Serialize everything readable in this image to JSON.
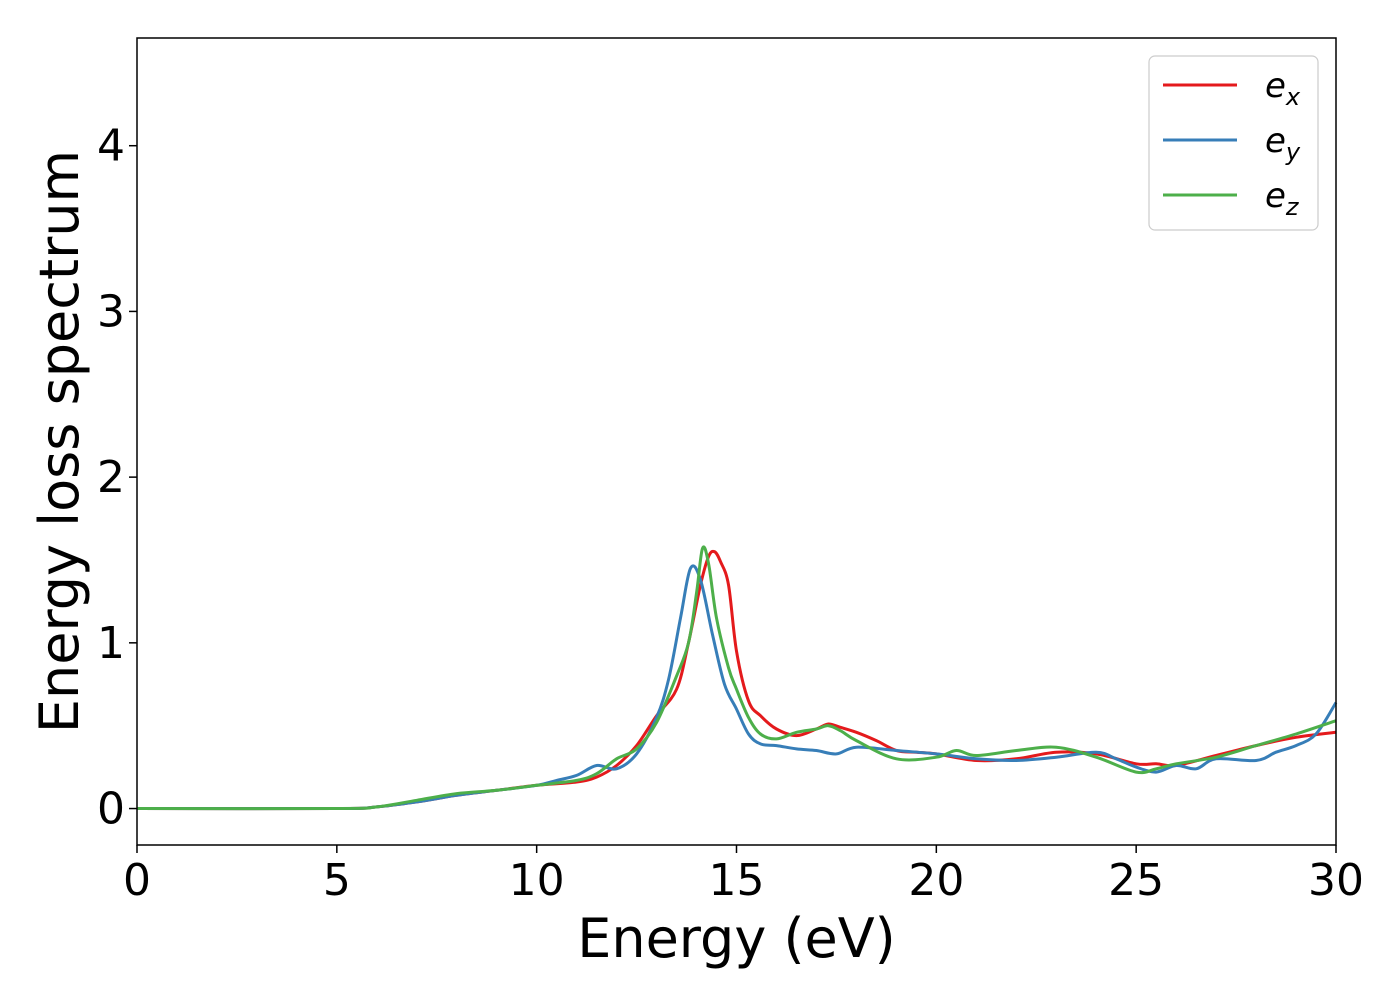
{
  "chart_data": {
    "type": "line",
    "title": "",
    "xlabel": "Energy (eV)",
    "ylabel": "Energy loss spectrum",
    "xlim": [
      0,
      30
    ],
    "ylim": [
      -0.22,
      4.65
    ],
    "xticks": [
      0,
      5,
      10,
      15,
      20,
      25,
      30
    ],
    "yticks": [
      0,
      1,
      2,
      3,
      4
    ],
    "grid": false,
    "legend_position": "top-right",
    "series": [
      {
        "name": "ex",
        "name_base": "e",
        "name_sub": "x",
        "color": "#e41a1c",
        "x": [
          0,
          5,
          6,
          7,
          8,
          9,
          10,
          11,
          11.5,
          12,
          12.5,
          13,
          13.5,
          13.8,
          14.1,
          14.3,
          14.45,
          14.6,
          14.8,
          15,
          15.3,
          15.6,
          16,
          16.5,
          17,
          17.3,
          17.6,
          18,
          18.5,
          19,
          19.5,
          20,
          21,
          22,
          23,
          24,
          25,
          25.5,
          26,
          27,
          28,
          29,
          30
        ],
        "y": [
          0,
          0,
          0.01,
          0.04,
          0.08,
          0.11,
          0.14,
          0.16,
          0.19,
          0.26,
          0.38,
          0.56,
          0.72,
          1.0,
          1.35,
          1.52,
          1.55,
          1.49,
          1.35,
          0.95,
          0.65,
          0.56,
          0.48,
          0.44,
          0.48,
          0.51,
          0.49,
          0.46,
          0.41,
          0.35,
          0.34,
          0.33,
          0.29,
          0.3,
          0.34,
          0.33,
          0.27,
          0.27,
          0.26,
          0.32,
          0.38,
          0.43,
          0.46
        ]
      },
      {
        "name": "ey",
        "name_base": "e",
        "name_sub": "y",
        "color": "#377eb8",
        "x": [
          0,
          5,
          6,
          7,
          8,
          9,
          10,
          10.5,
          11,
          11.5,
          12,
          12.5,
          13,
          13.3,
          13.6,
          13.85,
          14.1,
          14.4,
          14.7,
          15,
          15.3,
          15.6,
          16,
          16.5,
          17,
          17.5,
          18,
          19,
          20,
          21,
          22,
          23,
          24,
          24.5,
          25,
          25.5,
          26,
          26.5,
          27,
          28,
          28.5,
          29,
          29.5,
          30
        ],
        "y": [
          0,
          0,
          0.01,
          0.04,
          0.08,
          0.11,
          0.14,
          0.17,
          0.2,
          0.26,
          0.24,
          0.33,
          0.55,
          0.78,
          1.15,
          1.45,
          1.38,
          1.05,
          0.75,
          0.6,
          0.45,
          0.39,
          0.38,
          0.36,
          0.35,
          0.33,
          0.37,
          0.35,
          0.33,
          0.3,
          0.29,
          0.31,
          0.34,
          0.3,
          0.25,
          0.22,
          0.26,
          0.24,
          0.3,
          0.29,
          0.34,
          0.38,
          0.45,
          0.64
        ]
      },
      {
        "name": "ez",
        "name_base": "e",
        "name_sub": "z",
        "color": "#4daf4a",
        "x": [
          0,
          5,
          6,
          7,
          8,
          9,
          10,
          11,
          11.5,
          12,
          12.5,
          13,
          13.5,
          13.8,
          14.0,
          14.15,
          14.3,
          14.5,
          14.8,
          15,
          15.3,
          15.6,
          16,
          16.5,
          17,
          17.3,
          17.6,
          18,
          19,
          20,
          20.5,
          21,
          22,
          23,
          24,
          25,
          25.5,
          26,
          27,
          28,
          29,
          30
        ],
        "y": [
          0,
          0,
          0.01,
          0.05,
          0.09,
          0.11,
          0.14,
          0.17,
          0.21,
          0.3,
          0.36,
          0.52,
          0.8,
          1.0,
          1.3,
          1.57,
          1.48,
          1.15,
          0.85,
          0.72,
          0.55,
          0.45,
          0.42,
          0.46,
          0.48,
          0.5,
          0.47,
          0.41,
          0.3,
          0.31,
          0.35,
          0.32,
          0.35,
          0.37,
          0.31,
          0.22,
          0.24,
          0.27,
          0.31,
          0.38,
          0.45,
          0.53
        ]
      }
    ]
  }
}
